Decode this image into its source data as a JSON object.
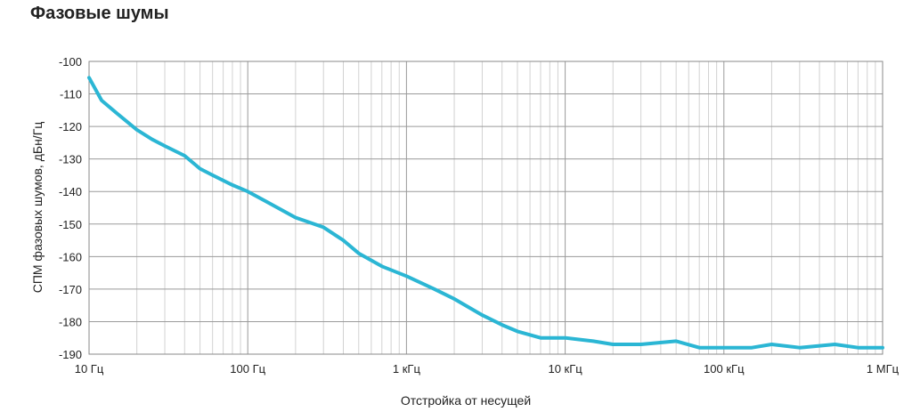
{
  "title": "Фазовые шумы",
  "chart_data": {
    "type": "line",
    "title": "Фазовые шумы",
    "xlabel": "Отстройка от несущей",
    "ylabel": "СПМ фазовых шумов, дБн/Гц",
    "xscale": "log",
    "xlim": [
      10,
      1000000
    ],
    "ylim": [
      -190,
      -100
    ],
    "grid": true,
    "x_ticks": [
      10,
      100,
      1000,
      10000,
      100000,
      1000000
    ],
    "x_tick_labels": [
      "10 Гц",
      "100 Гц",
      "1 кГц",
      "10 кГц",
      "100 кГц",
      "1 МГц"
    ],
    "y_ticks": [
      -100,
      -110,
      -120,
      -130,
      -140,
      -150,
      -160,
      -170,
      -180,
      -190
    ],
    "y_tick_labels": [
      "-100",
      "-110",
      "-120",
      "-130",
      "-140",
      "-150",
      "-160",
      "-170",
      "-180",
      "-190"
    ],
    "line_color": "#2bb6d4",
    "series": [
      {
        "x": [
          10,
          12,
          15,
          20,
          25,
          30,
          40,
          50,
          60,
          80,
          100,
          130,
          200,
          300,
          400,
          500,
          700,
          1000,
          1500,
          2000,
          3000,
          4000,
          5000,
          7000,
          10000,
          15000,
          20000,
          30000,
          50000,
          70000,
          100000,
          150000,
          200000,
          300000,
          500000,
          700000,
          1000000
        ],
        "y": [
          -105,
          -112,
          -116,
          -121,
          -124,
          -126,
          -129,
          -133,
          -135,
          -138,
          -140,
          -143,
          -148,
          -151,
          -155,
          -159,
          -163,
          -166,
          -170,
          -173,
          -178,
          -181,
          -183,
          -185,
          -185,
          -186,
          -187,
          -187,
          -186,
          -188,
          -188,
          -188,
          -187,
          -188,
          -187,
          -188,
          -188
        ]
      }
    ]
  }
}
